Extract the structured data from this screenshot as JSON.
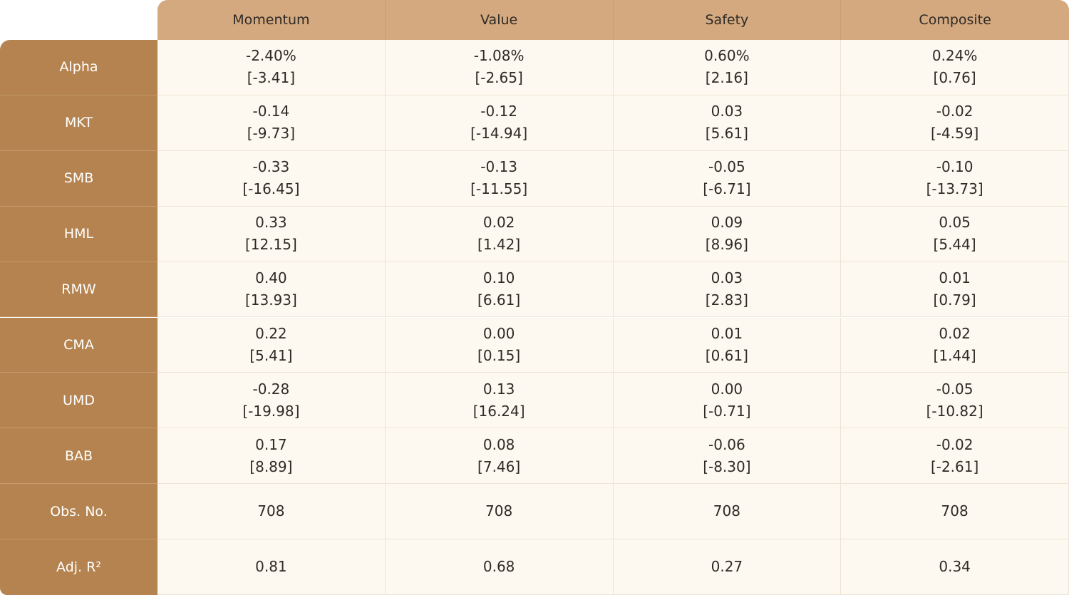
{
  "table": {
    "columns": [
      "Momentum",
      "Value",
      "Safety",
      "Composite"
    ],
    "rows": [
      {
        "label": "Alpha",
        "cells": [
          [
            "-2.40%",
            "[-3.41]"
          ],
          [
            "-1.08%",
            "[-2.65]"
          ],
          [
            "0.60%",
            "[2.16]"
          ],
          [
            "0.24%",
            "[0.76]"
          ]
        ]
      },
      {
        "label": "MKT",
        "cells": [
          [
            "-0.14",
            "[-9.73]"
          ],
          [
            "-0.12",
            "[-14.94]"
          ],
          [
            "0.03",
            "[5.61]"
          ],
          [
            "-0.02",
            "[-4.59]"
          ]
        ]
      },
      {
        "label": "SMB",
        "cells": [
          [
            "-0.33",
            "[-16.45]"
          ],
          [
            "-0.13",
            "[-11.55]"
          ],
          [
            "-0.05",
            "[-6.71]"
          ],
          [
            "-0.10",
            "[-13.73]"
          ]
        ]
      },
      {
        "label": "HML",
        "cells": [
          [
            "0.33",
            "[12.15]"
          ],
          [
            "0.02",
            "[1.42]"
          ],
          [
            "0.09",
            "[8.96]"
          ],
          [
            "0.05",
            "[5.44]"
          ]
        ]
      },
      {
        "label": "RMW",
        "cells": [
          [
            "0.40",
            "[13.93]"
          ],
          [
            "0.10",
            "[6.61]"
          ],
          [
            "0.03",
            "[2.83]"
          ],
          [
            "0.01",
            "[0.79]"
          ]
        ]
      },
      {
        "label": "CMA",
        "cells": [
          [
            "0.22",
            "[5.41]"
          ],
          [
            "0.00",
            "[0.15]"
          ],
          [
            "0.01",
            "[0.61]"
          ],
          [
            "0.02",
            "[1.44]"
          ]
        ]
      },
      {
        "label": "UMD",
        "cells": [
          [
            "-0.28",
            "[-19.98]"
          ],
          [
            "0.13",
            "[16.24]"
          ],
          [
            "0.00",
            "[-0.71]"
          ],
          [
            "-0.05",
            "[-10.82]"
          ]
        ]
      },
      {
        "label": "BAB",
        "cells": [
          [
            "0.17",
            "[8.89]"
          ],
          [
            "0.08",
            "[7.46]"
          ],
          [
            "-0.06",
            "[-8.30]"
          ],
          [
            "-0.02",
            "[-2.61]"
          ]
        ]
      },
      {
        "label": "Obs. No.",
        "cells": [
          [
            "708"
          ],
          [
            "708"
          ],
          [
            "708"
          ],
          [
            "708"
          ]
        ]
      },
      {
        "label": "Adj. R²",
        "cells": [
          [
            "0.81"
          ],
          [
            "0.68"
          ],
          [
            "0.27"
          ],
          [
            "0.34"
          ]
        ]
      }
    ]
  }
}
